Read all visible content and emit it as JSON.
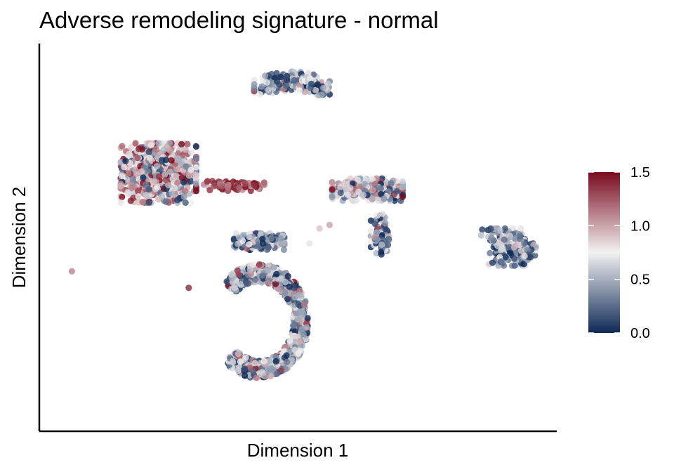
{
  "chart_data": {
    "type": "scatter",
    "title": "Adverse remodeling signature - normal",
    "xlabel": "Dimension 1",
    "ylabel": "Dimension 2",
    "x_range": [
      0,
      100
    ],
    "y_range": [
      0,
      100
    ],
    "x_ticks_shown": false,
    "y_ticks_shown": false,
    "grid": false,
    "legend_position": "right",
    "colorbar": {
      "min": 0.0,
      "max": 1.5,
      "ticks": [
        {
          "value": 0.0,
          "label": "0.0"
        },
        {
          "value": 0.5,
          "label": "0.5"
        },
        {
          "value": 1.0,
          "label": "1.0"
        },
        {
          "value": 1.5,
          "label": "1.5"
        }
      ],
      "colors": {
        "low": "#0f2a56",
        "mid": "#f2f2f2",
        "high": "#7a0a1e"
      }
    },
    "point_opacity": 0.8,
    "clusters": [
      {
        "id": "top-arc",
        "cx": 48.5,
        "cy": 90.5,
        "spread_x": 7.5,
        "spread_y": 2.6,
        "count": 320,
        "value_mean": 0.45,
        "value_sd": 0.35
      },
      {
        "id": "left-blob",
        "cx": 22,
        "cy": 67,
        "spread_x": 7.5,
        "spread_y": 8,
        "count": 700,
        "value_mean": 0.85,
        "value_sd": 0.42
      },
      {
        "id": "left-bridge",
        "cx": 37,
        "cy": 63.5,
        "spread_x": 6,
        "spread_y": 1.3,
        "count": 110,
        "value_mean": 1.3,
        "value_sd": 0.2
      },
      {
        "id": "center-right-blob",
        "cx": 63.5,
        "cy": 62.5,
        "spread_x": 7,
        "spread_y": 3,
        "count": 420,
        "value_mean": 0.65,
        "value_sd": 0.38
      },
      {
        "id": "center-right-tail",
        "cx": 66,
        "cy": 50,
        "spread_x": 1.8,
        "spread_y": 5.5,
        "count": 110,
        "value_mean": 0.5,
        "value_sd": 0.35
      },
      {
        "id": "center-small",
        "cx": 42,
        "cy": 48.5,
        "spread_x": 5,
        "spread_y": 2.2,
        "count": 200,
        "value_mean": 0.35,
        "value_sd": 0.33
      },
      {
        "id": "right-crescent",
        "cx": 92.5,
        "cy": 47,
        "spread_x": 4.5,
        "spread_y": 5,
        "count": 250,
        "value_mean": 0.4,
        "value_sd": 0.3
      },
      {
        "id": "bottom-c",
        "cx": 38,
        "cy": 27,
        "spread_x": 9,
        "spread_y": 14,
        "count": 950,
        "value_mean": 0.55,
        "value_sd": 0.38
      }
    ],
    "outliers": [
      {
        "x": 4.8,
        "y": 40.5,
        "value": 1.1
      },
      {
        "x": 54,
        "y": 52,
        "value": 0.9
      },
      {
        "x": 52,
        "y": 48,
        "value": 0.7
      },
      {
        "x": 56,
        "y": 53,
        "value": 1.0
      },
      {
        "x": 66.5,
        "y": 56,
        "value": 0.8
      },
      {
        "x": 28,
        "y": 36,
        "value": 1.4
      }
    ]
  }
}
